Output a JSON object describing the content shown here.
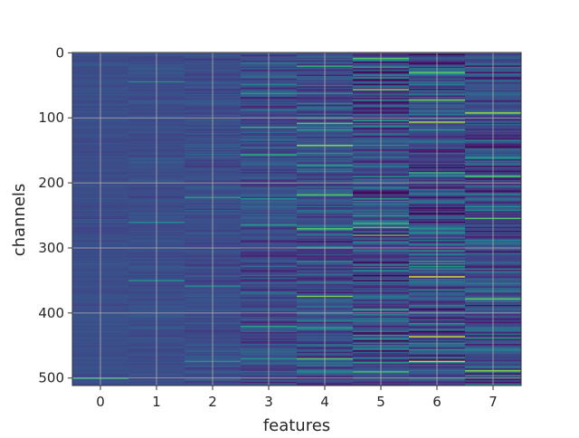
{
  "chart_data": {
    "type": "heatmap",
    "title": "",
    "xlabel": "features",
    "ylabel": "channels",
    "x_categories": [
      "0",
      "1",
      "2",
      "3",
      "4",
      "5",
      "6",
      "7"
    ],
    "y_range": [
      0,
      511
    ],
    "y_axis_inverted": true,
    "y_ticks": [
      "0",
      "100",
      "200",
      "300",
      "400",
      "500"
    ],
    "colormap": "viridis",
    "grid": true,
    "grid_color": "#b0b0b0",
    "column_contrast": [
      0.05,
      0.07,
      0.1,
      0.18,
      0.26,
      0.34,
      0.34,
      0.3
    ],
    "bright_bands": [
      {
        "feature": 0,
        "channel": 500,
        "value": 0.75
      },
      {
        "feature": 1,
        "channel": 45,
        "value": 0.6
      },
      {
        "feature": 1,
        "channel": 260,
        "value": 0.6
      },
      {
        "feature": 1,
        "channel": 350,
        "value": 0.62
      },
      {
        "feature": 2,
        "channel": 222,
        "value": 0.65
      },
      {
        "feature": 2,
        "channel": 358,
        "value": 0.6
      },
      {
        "feature": 2,
        "channel": 475,
        "value": 0.62
      },
      {
        "feature": 3,
        "channel": 115,
        "value": 0.72
      },
      {
        "feature": 3,
        "channel": 157,
        "value": 0.7
      },
      {
        "feature": 3,
        "channel": 265,
        "value": 0.65
      },
      {
        "feature": 3,
        "channel": 420,
        "value": 0.68
      },
      {
        "feature": 3,
        "channel": 470,
        "value": 0.62
      },
      {
        "feature": 4,
        "channel": 20,
        "value": 0.75
      },
      {
        "feature": 4,
        "channel": 108,
        "value": 0.8
      },
      {
        "feature": 4,
        "channel": 142,
        "value": 0.88
      },
      {
        "feature": 4,
        "channel": 218,
        "value": 0.8
      },
      {
        "feature": 4,
        "channel": 270,
        "value": 0.8
      },
      {
        "feature": 4,
        "channel": 375,
        "value": 0.85
      },
      {
        "feature": 4,
        "channel": 470,
        "value": 0.8
      },
      {
        "feature": 5,
        "channel": 8,
        "value": 0.8
      },
      {
        "feature": 5,
        "channel": 57,
        "value": 0.85
      },
      {
        "feature": 5,
        "channel": 262,
        "value": 0.75
      },
      {
        "feature": 5,
        "channel": 268,
        "value": 0.78
      },
      {
        "feature": 5,
        "channel": 280,
        "value": 0.8
      },
      {
        "feature": 5,
        "channel": 395,
        "value": 0.72
      },
      {
        "feature": 5,
        "channel": 490,
        "value": 0.78
      },
      {
        "feature": 6,
        "channel": 30,
        "value": 0.8
      },
      {
        "feature": 6,
        "channel": 72,
        "value": 0.85
      },
      {
        "feature": 6,
        "channel": 106,
        "value": 0.92
      },
      {
        "feature": 6,
        "channel": 185,
        "value": 0.75
      },
      {
        "feature": 6,
        "channel": 344,
        "value": 0.96
      },
      {
        "feature": 6,
        "channel": 436,
        "value": 0.95
      },
      {
        "feature": 6,
        "channel": 474,
        "value": 0.92
      },
      {
        "feature": 7,
        "channel": 92,
        "value": 0.9
      },
      {
        "feature": 7,
        "channel": 190,
        "value": 0.78
      },
      {
        "feature": 7,
        "channel": 255,
        "value": 0.8
      },
      {
        "feature": 7,
        "channel": 378,
        "value": 0.82
      },
      {
        "feature": 7,
        "channel": 488,
        "value": 0.85
      }
    ]
  }
}
